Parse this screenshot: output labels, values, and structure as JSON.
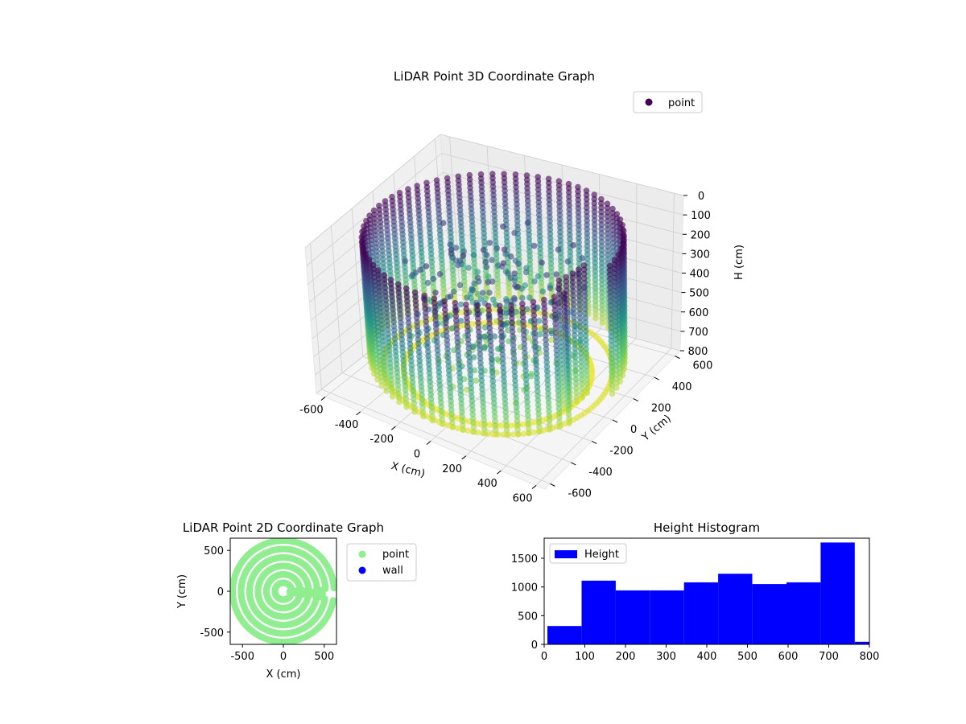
{
  "chart_data": [
    {
      "type": "scatter3d",
      "title": "LiDAR Point 3D Coordinate Graph",
      "xlabel": "X (cm)",
      "ylabel": "Y (cm)",
      "zlabel": "H (cm)",
      "xlim": [
        -650,
        650
      ],
      "ylim": [
        -650,
        650
      ],
      "zlim": [
        0,
        800
      ],
      "z_inverted": true,
      "x_ticks": [
        -600,
        -400,
        -200,
        0,
        200,
        400,
        600
      ],
      "y_ticks": [
        -600,
        -400,
        -200,
        0,
        200,
        400,
        600
      ],
      "z_ticks": [
        0,
        100,
        200,
        300,
        400,
        500,
        600,
        700,
        800
      ],
      "colormap": "viridis",
      "legend": {
        "position": "upper-right",
        "entries": [
          {
            "label": "point",
            "color": "#440154"
          }
        ]
      },
      "series": [
        {
          "name": "point",
          "shape": "cylindrical room wall",
          "radius": 620,
          "wall_height_range": [
            0,
            800
          ],
          "columns": 72,
          "door_gap_deg": [
            -25,
            5
          ]
        }
      ],
      "grid": true
    },
    {
      "type": "scatter",
      "title": "LiDAR Point 2D Coordinate Graph",
      "xlabel": "X (cm)",
      "ylabel": "Y (cm)",
      "xlim": [
        -650,
        650
      ],
      "ylim": [
        -650,
        650
      ],
      "x_ticks": [
        -500,
        0,
        500
      ],
      "y_ticks": [
        -500,
        0,
        500
      ],
      "legend": {
        "position": "outside-right",
        "entries": [
          {
            "label": "point",
            "color": "#90ee90"
          },
          {
            "label": "wall",
            "color": "#0000ff"
          }
        ]
      },
      "series": [
        {
          "name": "point",
          "color": "#90ee90",
          "shape": "disk",
          "radius": 620,
          "notch": {
            "angle_deg": [
              -10,
              3
            ],
            "inner_radius": 480
          }
        }
      ]
    },
    {
      "type": "bar",
      "title": "Height Histogram",
      "xlim": [
        0,
        800
      ],
      "ylim": [
        0,
        1850
      ],
      "x_ticks": [
        0,
        100,
        200,
        300,
        400,
        500,
        600,
        700,
        800
      ],
      "y_ticks": [
        0,
        500,
        1000,
        1500
      ],
      "legend": {
        "position": "upper-left",
        "entries": [
          {
            "label": "Height",
            "color": "#0000ff"
          }
        ]
      },
      "series": [
        {
          "name": "Height",
          "color": "#0000ff",
          "bins": [
            {
              "start": 8,
              "end": 92,
              "count": 320
            },
            {
              "start": 92,
              "end": 176,
              "count": 1110
            },
            {
              "start": 176,
              "end": 260,
              "count": 940
            },
            {
              "start": 260,
              "end": 344,
              "count": 940
            },
            {
              "start": 344,
              "end": 428,
              "count": 1080
            },
            {
              "start": 428,
              "end": 512,
              "count": 1230
            },
            {
              "start": 512,
              "end": 596,
              "count": 1050
            },
            {
              "start": 596,
              "end": 680,
              "count": 1080
            },
            {
              "start": 680,
              "end": 764,
              "count": 1775
            },
            {
              "start": 764,
              "end": 800,
              "count": 45
            }
          ]
        }
      ]
    }
  ]
}
